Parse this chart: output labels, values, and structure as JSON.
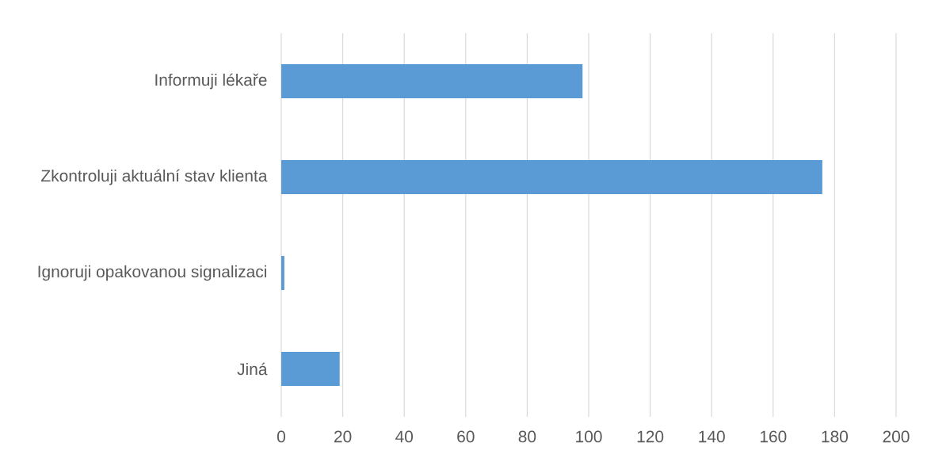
{
  "chart_data": {
    "type": "bar",
    "orientation": "horizontal",
    "categories": [
      "Informuji lékaře",
      "Zkontroluji aktuální stav klienta",
      "Ignoruji opakovanou signalizaci",
      "Jiná"
    ],
    "values": [
      98,
      176,
      1,
      19
    ],
    "color": "#5b9bd5",
    "xlim": [
      0,
      200
    ],
    "xticks": [
      0,
      20,
      40,
      60,
      80,
      100,
      120,
      140,
      160,
      180,
      200
    ],
    "grid": "x"
  }
}
